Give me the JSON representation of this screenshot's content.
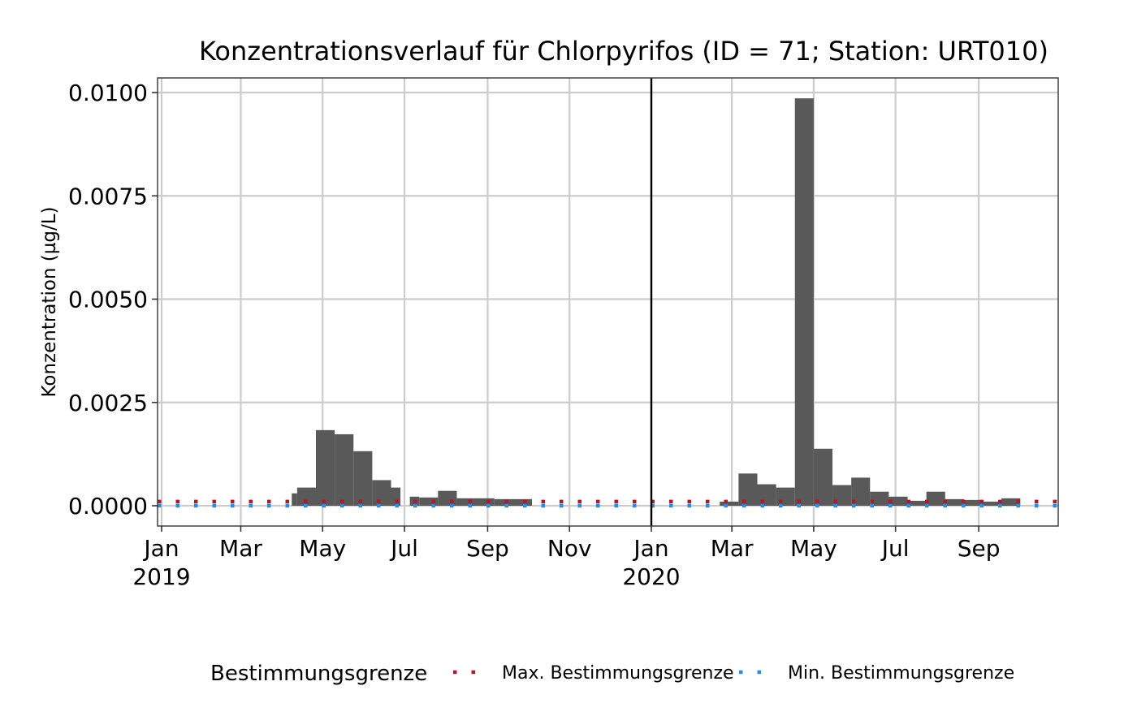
{
  "chart_data": {
    "type": "bar",
    "title": "Konzentrationsverlauf für Chlorpyrifos (ID = 71; Station: URT010)",
    "xlabel": "",
    "ylabel": "Konzentration (µg/L)",
    "ylim": [
      -0.0005,
      0.0104
    ],
    "y_ticks": [
      "0.0000",
      "0.0025",
      "0.0050",
      "0.0075",
      "0.0100"
    ],
    "y_tick_values": [
      0,
      0.0025,
      0.005,
      0.0075,
      0.01
    ],
    "x_range": [
      "2019-01-01",
      "2020-10-31"
    ],
    "x_ticks": [
      {
        "date": "2019-01-01",
        "label": "Jan",
        "sublabel": "2019"
      },
      {
        "date": "2019-03-01",
        "label": "Mar",
        "sublabel": ""
      },
      {
        "date": "2019-05-01",
        "label": "May",
        "sublabel": ""
      },
      {
        "date": "2019-07-01",
        "label": "Jul",
        "sublabel": ""
      },
      {
        "date": "2019-09-01",
        "label": "Sep",
        "sublabel": ""
      },
      {
        "date": "2019-11-01",
        "label": "Nov",
        "sublabel": ""
      },
      {
        "date": "2020-01-01",
        "label": "Jan",
        "sublabel": "2020"
      },
      {
        "date": "2020-03-01",
        "label": "Mar",
        "sublabel": ""
      },
      {
        "date": "2020-05-01",
        "label": "May",
        "sublabel": ""
      },
      {
        "date": "2020-07-01",
        "label": "Jul",
        "sublabel": ""
      },
      {
        "date": "2020-09-01",
        "label": "Sep",
        "sublabel": ""
      }
    ],
    "year_separator": "2020-01-01",
    "grid": true,
    "bar_color": "#595959",
    "bars": [
      {
        "start": "2019-04-08",
        "end": "2019-04-12",
        "value": 0.0003
      },
      {
        "start": "2019-04-12",
        "end": "2019-04-26",
        "value": 0.00044
      },
      {
        "start": "2019-04-26",
        "end": "2019-05-10",
        "value": 0.00183
      },
      {
        "start": "2019-05-10",
        "end": "2019-05-24",
        "value": 0.00173
      },
      {
        "start": "2019-05-24",
        "end": "2019-06-07",
        "value": 0.00132
      },
      {
        "start": "2019-06-07",
        "end": "2019-06-21",
        "value": 0.00062
      },
      {
        "start": "2019-06-21",
        "end": "2019-06-28",
        "value": 0.00044
      },
      {
        "start": "2019-07-05",
        "end": "2019-07-12",
        "value": 0.00022
      },
      {
        "start": "2019-07-12",
        "end": "2019-07-26",
        "value": 0.0002
      },
      {
        "start": "2019-07-26",
        "end": "2019-08-09",
        "value": 0.00036
      },
      {
        "start": "2019-08-09",
        "end": "2019-09-06",
        "value": 0.00018
      },
      {
        "start": "2019-09-06",
        "end": "2019-10-04",
        "value": 0.00016
      },
      {
        "start": "2020-02-21",
        "end": "2020-03-06",
        "value": 0.0001
      },
      {
        "start": "2020-03-06",
        "end": "2020-03-20",
        "value": 0.00078
      },
      {
        "start": "2020-03-20",
        "end": "2020-04-03",
        "value": 0.00052
      },
      {
        "start": "2020-04-03",
        "end": "2020-04-17",
        "value": 0.00044
      },
      {
        "start": "2020-04-17",
        "end": "2020-05-01",
        "value": 0.00986
      },
      {
        "start": "2020-05-01",
        "end": "2020-05-15",
        "value": 0.00138
      },
      {
        "start": "2020-05-15",
        "end": "2020-05-29",
        "value": 0.0005
      },
      {
        "start": "2020-05-29",
        "end": "2020-06-12",
        "value": 0.00068
      },
      {
        "start": "2020-06-12",
        "end": "2020-06-26",
        "value": 0.00034
      },
      {
        "start": "2020-06-26",
        "end": "2020-07-10",
        "value": 0.00022
      },
      {
        "start": "2020-07-10",
        "end": "2020-07-24",
        "value": 0.00012
      },
      {
        "start": "2020-07-24",
        "end": "2020-08-07",
        "value": 0.00034
      },
      {
        "start": "2020-08-07",
        "end": "2020-08-21",
        "value": 0.00016
      },
      {
        "start": "2020-08-21",
        "end": "2020-09-04",
        "value": 0.00014
      },
      {
        "start": "2020-09-04",
        "end": "2020-09-18",
        "value": 0.0001
      },
      {
        "start": "2020-09-18",
        "end": "2020-10-02",
        "value": 0.00018
      }
    ],
    "reference_lines": [
      {
        "name": "Max. Bestimmungsgrenze",
        "value": 0.0001,
        "color": "#b2182b",
        "style": "dotted"
      },
      {
        "name": "Min. Bestimmungsgrenze",
        "value": 0.0,
        "color": "#2b8ce6",
        "style": "dotted"
      }
    ],
    "legend": {
      "title": "Bestimmungsgrenze",
      "position": "bottom",
      "entries": [
        "Max. Bestimmungsgrenze",
        "Min. Bestimmungsgrenze"
      ]
    }
  }
}
